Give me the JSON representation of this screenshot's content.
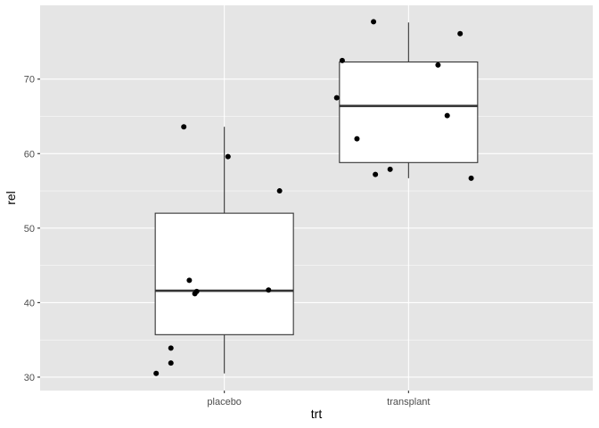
{
  "chart_data": {
    "type": "boxplot",
    "title": "",
    "xlabel": "trt",
    "ylabel": "rel",
    "categories": [
      "placebo",
      "transplant"
    ],
    "ylim": [
      28.2,
      79.9
    ],
    "yticks": [
      30,
      40,
      50,
      60,
      70
    ],
    "grid": true,
    "legend": "none",
    "boxes": [
      {
        "category": "placebo",
        "whisker_low": 30.5,
        "q1": 35.7,
        "median": 41.6,
        "q3": 52.0,
        "whisker_high": 63.6
      },
      {
        "category": "transplant",
        "whisker_low": 56.7,
        "q1": 58.8,
        "median": 66.4,
        "q3": 72.3,
        "whisker_high": 77.6
      }
    ],
    "points": [
      {
        "category": "placebo",
        "jitter": -0.37,
        "value": 30.5
      },
      {
        "category": "placebo",
        "jitter": -0.29,
        "value": 31.9
      },
      {
        "category": "placebo",
        "jitter": -0.29,
        "value": 33.9
      },
      {
        "category": "placebo",
        "jitter": -0.19,
        "value": 43.0
      },
      {
        "category": "placebo",
        "jitter": -0.16,
        "value": 41.2
      },
      {
        "category": "placebo",
        "jitter": -0.15,
        "value": 41.5
      },
      {
        "category": "placebo",
        "jitter": 0.24,
        "value": 41.7
      },
      {
        "category": "placebo",
        "jitter": -0.22,
        "value": 63.6
      },
      {
        "category": "placebo",
        "jitter": 0.02,
        "value": 59.6
      },
      {
        "category": "placebo",
        "jitter": 0.3,
        "value": 55.0
      },
      {
        "category": "transplant",
        "jitter": -0.39,
        "value": 67.5
      },
      {
        "category": "transplant",
        "jitter": -0.36,
        "value": 72.5
      },
      {
        "category": "transplant",
        "jitter": -0.28,
        "value": 62.0
      },
      {
        "category": "transplant",
        "jitter": -0.19,
        "value": 77.7
      },
      {
        "category": "transplant",
        "jitter": -0.18,
        "value": 57.2
      },
      {
        "category": "transplant",
        "jitter": -0.1,
        "value": 57.9
      },
      {
        "category": "transplant",
        "jitter": 0.16,
        "value": 71.9
      },
      {
        "category": "transplant",
        "jitter": 0.21,
        "value": 65.1
      },
      {
        "category": "transplant",
        "jitter": 0.28,
        "value": 76.1
      },
      {
        "category": "transplant",
        "jitter": 0.34,
        "value": 56.7
      }
    ],
    "colors": {
      "panel": "#e5e5e5",
      "grid": "#ffffff",
      "box_fill": "#ffffff",
      "box_line": "#333333",
      "point": "#000000"
    }
  }
}
